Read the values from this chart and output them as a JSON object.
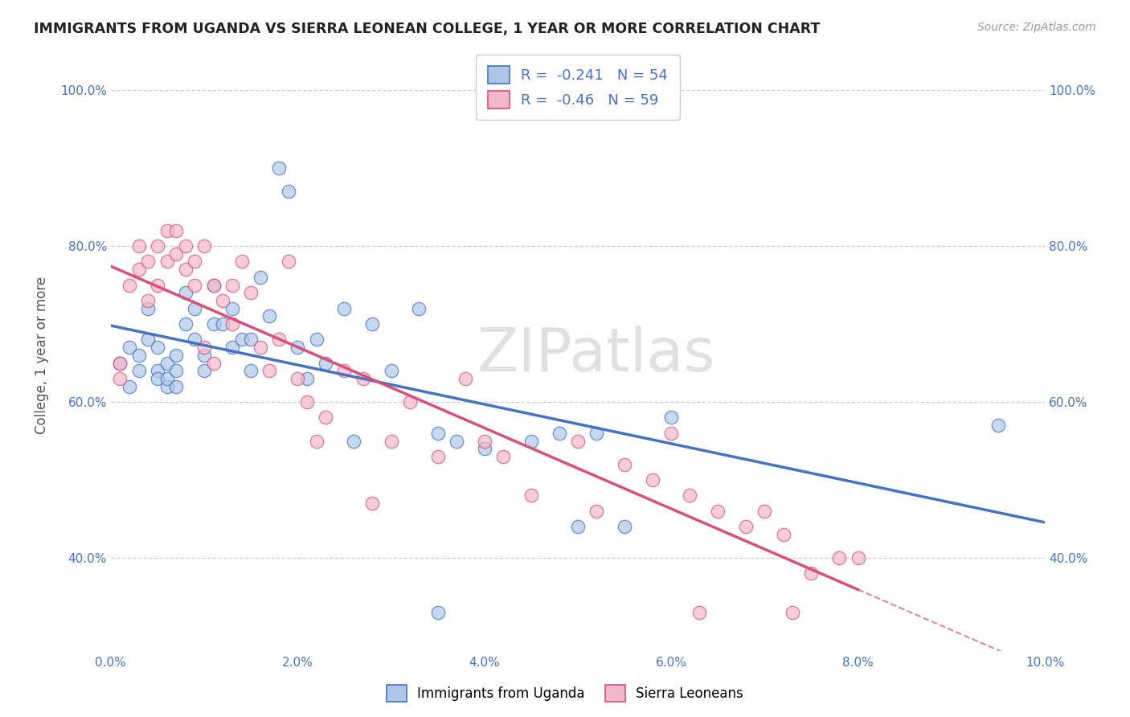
{
  "title": "IMMIGRANTS FROM UGANDA VS SIERRA LEONEAN COLLEGE, 1 YEAR OR MORE CORRELATION CHART",
  "source": "Source: ZipAtlas.com",
  "xlabel": "",
  "ylabel": "College, 1 year or more",
  "legend_label1": "Immigrants from Uganda",
  "legend_label2": "Sierra Leoneans",
  "r1": -0.241,
  "n1": 54,
  "r2": -0.46,
  "n2": 59,
  "color1": "#aec6e8",
  "color2": "#f4b8cc",
  "line_color1": "#4472c4",
  "line_color2": "#d94f7a",
  "xlim": [
    0.0,
    0.1
  ],
  "ylim": [
    0.28,
    1.04
  ],
  "xticks": [
    0.0,
    0.02,
    0.04,
    0.06,
    0.08,
    0.1
  ],
  "yticks": [
    0.4,
    0.6,
    0.8,
    1.0
  ],
  "xtick_labels": [
    "0.0%",
    "2.0%",
    "4.0%",
    "6.0%",
    "8.0%",
    "10.0%"
  ],
  "ytick_labels": [
    "40.0%",
    "60.0%",
    "80.0%",
    "100.0%"
  ],
  "watermark": "ZIPatlas",
  "blue_x": [
    0.001,
    0.002,
    0.002,
    0.003,
    0.003,
    0.004,
    0.004,
    0.005,
    0.005,
    0.005,
    0.006,
    0.006,
    0.006,
    0.007,
    0.007,
    0.007,
    0.008,
    0.008,
    0.009,
    0.009,
    0.01,
    0.01,
    0.011,
    0.011,
    0.012,
    0.013,
    0.013,
    0.014,
    0.015,
    0.015,
    0.016,
    0.017,
    0.018,
    0.019,
    0.02,
    0.021,
    0.022,
    0.023,
    0.025,
    0.026,
    0.028,
    0.03,
    0.033,
    0.035,
    0.037,
    0.04,
    0.045,
    0.048,
    0.05,
    0.052,
    0.055,
    0.06,
    0.095,
    0.035
  ],
  "blue_y": [
    0.65,
    0.67,
    0.62,
    0.64,
    0.66,
    0.72,
    0.68,
    0.64,
    0.67,
    0.63,
    0.62,
    0.65,
    0.63,
    0.66,
    0.62,
    0.64,
    0.74,
    0.7,
    0.72,
    0.68,
    0.64,
    0.66,
    0.75,
    0.7,
    0.7,
    0.72,
    0.67,
    0.68,
    0.68,
    0.64,
    0.76,
    0.71,
    0.9,
    0.87,
    0.67,
    0.63,
    0.68,
    0.65,
    0.72,
    0.55,
    0.7,
    0.64,
    0.72,
    0.56,
    0.55,
    0.54,
    0.55,
    0.56,
    0.44,
    0.56,
    0.44,
    0.58,
    0.57,
    0.33
  ],
  "pink_x": [
    0.001,
    0.001,
    0.002,
    0.003,
    0.003,
    0.004,
    0.004,
    0.005,
    0.005,
    0.006,
    0.006,
    0.007,
    0.007,
    0.008,
    0.008,
    0.009,
    0.009,
    0.01,
    0.01,
    0.011,
    0.011,
    0.012,
    0.013,
    0.013,
    0.014,
    0.015,
    0.016,
    0.017,
    0.018,
    0.019,
    0.02,
    0.021,
    0.022,
    0.023,
    0.025,
    0.027,
    0.028,
    0.03,
    0.032,
    0.035,
    0.038,
    0.04,
    0.042,
    0.045,
    0.05,
    0.052,
    0.055,
    0.058,
    0.06,
    0.062,
    0.065,
    0.068,
    0.07,
    0.072,
    0.075,
    0.078,
    0.08,
    0.073,
    0.063
  ],
  "pink_y": [
    0.65,
    0.63,
    0.75,
    0.8,
    0.77,
    0.78,
    0.73,
    0.8,
    0.75,
    0.82,
    0.78,
    0.82,
    0.79,
    0.77,
    0.8,
    0.75,
    0.78,
    0.67,
    0.8,
    0.65,
    0.75,
    0.73,
    0.75,
    0.7,
    0.78,
    0.74,
    0.67,
    0.64,
    0.68,
    0.78,
    0.63,
    0.6,
    0.55,
    0.58,
    0.64,
    0.63,
    0.47,
    0.55,
    0.6,
    0.53,
    0.63,
    0.55,
    0.53,
    0.48,
    0.55,
    0.46,
    0.52,
    0.5,
    0.56,
    0.48,
    0.46,
    0.44,
    0.46,
    0.43,
    0.38,
    0.4,
    0.4,
    0.33,
    0.33
  ]
}
